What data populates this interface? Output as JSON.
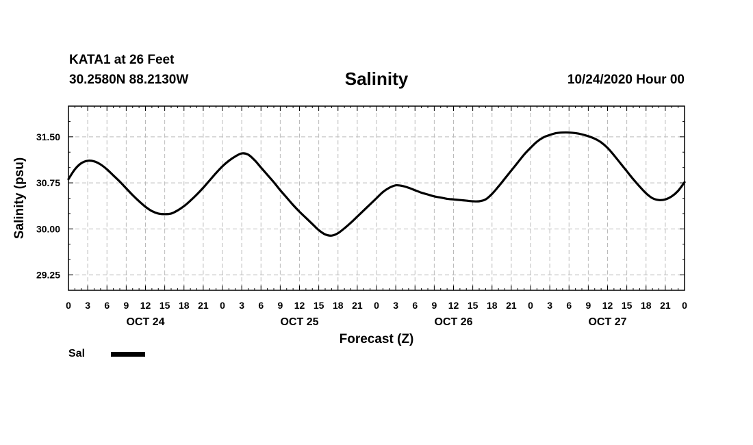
{
  "header": {
    "station": "KATA1 at 26 Feet",
    "coordinates": "30.2580N 88.2130W",
    "title": "Salinity",
    "timestamp": "10/24/2020 Hour 00"
  },
  "legend": {
    "label": "Sal"
  },
  "chart_data": {
    "type": "line",
    "title": "Salinity",
    "xlabel": "Forecast (Z)",
    "ylabel": "Salinity (psu)",
    "xlim": [
      0,
      96
    ],
    "ylim": [
      29.0,
      32.0
    ],
    "yticks": [
      29.25,
      30.0,
      30.75,
      31.5
    ],
    "ytick_labels": [
      "29.25",
      "30.00",
      "30.75",
      "31.50"
    ],
    "xtick_labels": [
      "0",
      "3",
      "6",
      "9",
      "12",
      "15",
      "18",
      "21",
      "0",
      "3",
      "6",
      "9",
      "12",
      "15",
      "18",
      "21",
      "0",
      "3",
      "6",
      "9",
      "12",
      "15",
      "18",
      "21",
      "0",
      "3",
      "6",
      "9",
      "12",
      "15",
      "18",
      "21",
      "0"
    ],
    "day_labels": [
      {
        "label": "OCT 24",
        "hour": 12
      },
      {
        "label": "OCT 25",
        "hour": 36
      },
      {
        "label": "OCT 26",
        "hour": 60
      },
      {
        "label": "OCT 27",
        "hour": 84
      }
    ],
    "grid": true,
    "legend_position": "bottom-left",
    "series": [
      {
        "name": "Sal",
        "color": "#000000",
        "x": [
          0,
          1,
          2,
          3,
          4,
          5,
          6,
          7,
          8,
          9,
          10,
          11,
          12,
          13,
          14,
          15,
          16,
          17,
          18,
          19,
          20,
          21,
          22,
          23,
          24,
          25,
          26,
          27,
          28,
          29,
          30,
          31,
          32,
          33,
          34,
          35,
          36,
          37,
          38,
          39,
          40,
          41,
          42,
          43,
          44,
          45,
          46,
          47,
          48,
          49,
          50,
          51,
          52,
          53,
          54,
          55,
          56,
          57,
          58,
          59,
          60,
          61,
          62,
          63,
          64,
          65,
          66,
          67,
          68,
          69,
          70,
          71,
          72,
          73,
          74,
          75,
          76,
          77,
          78,
          79,
          80,
          81,
          82,
          83,
          84,
          85,
          86,
          87,
          88,
          89,
          90,
          91,
          92,
          93,
          94,
          95,
          96
        ],
        "y": [
          30.81,
          30.97,
          31.07,
          31.11,
          31.1,
          31.05,
          30.97,
          30.87,
          30.77,
          30.66,
          30.55,
          30.45,
          30.36,
          30.29,
          30.25,
          30.24,
          30.25,
          30.3,
          30.37,
          30.46,
          30.56,
          30.67,
          30.79,
          30.91,
          31.02,
          31.11,
          31.18,
          31.23,
          31.21,
          31.12,
          31.0,
          30.88,
          30.76,
          30.63,
          30.51,
          30.39,
          30.28,
          30.18,
          30.08,
          29.98,
          29.91,
          29.89,
          29.93,
          30.01,
          30.1,
          30.2,
          30.3,
          30.4,
          30.5,
          30.6,
          30.67,
          30.71,
          30.7,
          30.67,
          30.63,
          30.59,
          30.56,
          30.53,
          30.51,
          30.49,
          30.48,
          30.47,
          30.46,
          30.45,
          30.45,
          30.48,
          30.57,
          30.69,
          30.82,
          30.95,
          31.08,
          31.21,
          31.32,
          31.42,
          31.49,
          31.53,
          31.56,
          31.57,
          31.57,
          31.56,
          31.54,
          31.51,
          31.47,
          31.41,
          31.32,
          31.2,
          31.07,
          30.94,
          30.81,
          30.69,
          30.58,
          30.5,
          30.47,
          30.48,
          30.53,
          30.62,
          30.76
        ]
      }
    ]
  }
}
